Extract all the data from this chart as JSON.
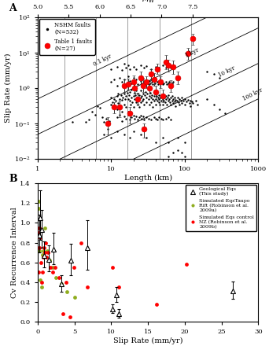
{
  "panel_A": {
    "xlabel": "Length (km)",
    "ylabel": "Slip Rate (mm/yr)",
    "xlim": [
      1,
      1000
    ],
    "ylim": [
      0.01,
      100
    ],
    "mw_ticks": [
      5.0,
      5.5,
      6.0,
      6.5,
      7.0,
      7.5
    ],
    "ri_contours": [
      0.1,
      1.0,
      10.0,
      100.0
    ],
    "ri_labels": [
      "0.1 kyr",
      "1 kyr",
      "10 kyr",
      "100 kyr"
    ],
    "nshm_points": [
      [
        4.5,
        0.11
      ],
      [
        5.0,
        0.13
      ],
      [
        5.5,
        0.22
      ],
      [
        6.0,
        0.18
      ],
      [
        6.5,
        0.32
      ],
      [
        7.0,
        0.28
      ],
      [
        7.5,
        0.15
      ],
      [
        8.0,
        0.11
      ],
      [
        8.5,
        0.14
      ],
      [
        9.0,
        0.09
      ],
      [
        9.5,
        0.12
      ],
      [
        10.0,
        0.35
      ],
      [
        10.0,
        0.55
      ],
      [
        10.5,
        0.4
      ],
      [
        11.0,
        0.5
      ],
      [
        11.0,
        0.3
      ],
      [
        11.5,
        0.45
      ],
      [
        12.0,
        0.6
      ],
      [
        12.0,
        0.25
      ],
      [
        12.5,
        0.7
      ],
      [
        12.5,
        0.38
      ],
      [
        13.0,
        0.5
      ],
      [
        13.0,
        0.28
      ],
      [
        13.5,
        0.65
      ],
      [
        14.0,
        0.48
      ],
      [
        14.0,
        0.22
      ],
      [
        14.5,
        0.55
      ],
      [
        15.0,
        0.7
      ],
      [
        15.0,
        0.35
      ],
      [
        15.5,
        0.5
      ],
      [
        16.0,
        0.6
      ],
      [
        16.0,
        0.3
      ],
      [
        16.5,
        0.75
      ],
      [
        17.0,
        0.5
      ],
      [
        17.0,
        0.22
      ],
      [
        17.5,
        0.65
      ],
      [
        18.0,
        0.45
      ],
      [
        18.0,
        0.8
      ],
      [
        18.5,
        0.35
      ],
      [
        19.0,
        0.55
      ],
      [
        19.0,
        0.9
      ],
      [
        19.5,
        0.4
      ],
      [
        20.0,
        0.6
      ],
      [
        20.0,
        0.3
      ],
      [
        20.5,
        0.75
      ],
      [
        21.0,
        0.5
      ],
      [
        21.5,
        0.65
      ],
      [
        22.0,
        0.4
      ],
      [
        22.0,
        0.85
      ],
      [
        22.5,
        0.55
      ],
      [
        23.0,
        0.7
      ],
      [
        23.0,
        0.35
      ],
      [
        23.5,
        0.5
      ],
      [
        24.0,
        0.65
      ],
      [
        24.0,
        0.3
      ],
      [
        25.0,
        0.55
      ],
      [
        25.0,
        0.85
      ],
      [
        25.5,
        0.4
      ],
      [
        26.0,
        0.6
      ],
      [
        26.5,
        0.45
      ],
      [
        27.0,
        0.7
      ],
      [
        27.5,
        0.5
      ],
      [
        28.0,
        0.35
      ],
      [
        28.5,
        0.65
      ],
      [
        29.0,
        0.8
      ],
      [
        30.0,
        0.55
      ],
      [
        30.0,
        0.4
      ],
      [
        31.0,
        0.7
      ],
      [
        32.0,
        0.5
      ],
      [
        33.0,
        0.6
      ],
      [
        33.0,
        0.35
      ],
      [
        34.0,
        0.75
      ],
      [
        35.0,
        0.55
      ],
      [
        35.0,
        0.4
      ],
      [
        36.0,
        0.65
      ],
      [
        37.0,
        0.5
      ],
      [
        37.0,
        0.3
      ],
      [
        38.0,
        0.6
      ],
      [
        38.5,
        0.45
      ],
      [
        39.0,
        0.7
      ],
      [
        40.0,
        0.5
      ],
      [
        40.0,
        0.35
      ],
      [
        41.0,
        0.6
      ],
      [
        42.0,
        0.45
      ],
      [
        43.0,
        0.55
      ],
      [
        44.0,
        0.4
      ],
      [
        45.0,
        0.65
      ],
      [
        45.0,
        0.5
      ],
      [
        46.0,
        0.35
      ],
      [
        47.0,
        0.55
      ],
      [
        48.0,
        0.45
      ],
      [
        49.0,
        0.6
      ],
      [
        50.0,
        0.5
      ],
      [
        50.0,
        0.35
      ],
      [
        52.0,
        0.45
      ],
      [
        53.0,
        0.55
      ],
      [
        54.0,
        0.4
      ],
      [
        55.0,
        0.6
      ],
      [
        56.0,
        0.5
      ],
      [
        57.0,
        0.35
      ],
      [
        58.0,
        0.55
      ],
      [
        60.0,
        0.45
      ],
      [
        60.0,
        0.65
      ],
      [
        62.0,
        0.5
      ],
      [
        63.0,
        0.4
      ],
      [
        65.0,
        0.55
      ],
      [
        65.0,
        0.35
      ],
      [
        67.0,
        0.45
      ],
      [
        68.0,
        0.6
      ],
      [
        70.0,
        0.5
      ],
      [
        70.0,
        0.38
      ],
      [
        72.0,
        0.55
      ],
      [
        73.0,
        0.42
      ],
      [
        75.0,
        0.48
      ],
      [
        75.0,
        0.32
      ],
      [
        78.0,
        0.45
      ],
      [
        80.0,
        0.55
      ],
      [
        82.0,
        0.4
      ],
      [
        85.0,
        0.5
      ],
      [
        85.0,
        0.35
      ],
      [
        88.0,
        0.45
      ],
      [
        90.0,
        0.55
      ],
      [
        90.0,
        0.38
      ],
      [
        95.0,
        0.45
      ],
      [
        100.0,
        0.5
      ],
      [
        100.0,
        0.35
      ],
      [
        105.0,
        0.42
      ],
      [
        110.0,
        0.48
      ],
      [
        115.0,
        0.38
      ],
      [
        120.0,
        0.45
      ],
      [
        120.0,
        0.32
      ],
      [
        125.0,
        0.42
      ],
      [
        130.0,
        0.38
      ],
      [
        140.0,
        0.45
      ],
      [
        150.0,
        0.35
      ],
      [
        10.0,
        1.5
      ],
      [
        11.0,
        1.8
      ],
      [
        12.0,
        1.2
      ],
      [
        13.0,
        2.0
      ],
      [
        14.0,
        1.5
      ],
      [
        15.0,
        1.8
      ],
      [
        16.0,
        1.3
      ],
      [
        17.0,
        2.2
      ],
      [
        18.0,
        1.6
      ],
      [
        19.0,
        1.4
      ],
      [
        20.0,
        2.0
      ],
      [
        21.0,
        1.5
      ],
      [
        22.0,
        1.8
      ],
      [
        23.0,
        1.3
      ],
      [
        24.0,
        2.1
      ],
      [
        25.0,
        1.6
      ],
      [
        26.0,
        1.4
      ],
      [
        27.0,
        1.9
      ],
      [
        28.0,
        1.5
      ],
      [
        29.0,
        1.3
      ],
      [
        30.0,
        1.7
      ],
      [
        31.0,
        1.5
      ],
      [
        32.0,
        1.3
      ],
      [
        33.0,
        1.6
      ],
      [
        34.0,
        1.4
      ],
      [
        35.0,
        1.8
      ],
      [
        36.0,
        1.5
      ],
      [
        37.0,
        1.3
      ],
      [
        38.0,
        1.6
      ],
      [
        39.0,
        1.4
      ],
      [
        40.0,
        1.7
      ],
      [
        42.0,
        1.5
      ],
      [
        43.0,
        1.3
      ],
      [
        45.0,
        1.6
      ],
      [
        46.0,
        1.4
      ],
      [
        48.0,
        1.5
      ],
      [
        50.0,
        1.3
      ],
      [
        52.0,
        1.4
      ],
      [
        55.0,
        1.5
      ],
      [
        57.0,
        1.3
      ],
      [
        60.0,
        1.4
      ],
      [
        62.0,
        1.5
      ],
      [
        65.0,
        1.3
      ],
      [
        68.0,
        1.4
      ],
      [
        70.0,
        1.5
      ],
      [
        12.0,
        0.15
      ],
      [
        13.0,
        0.18
      ],
      [
        14.0,
        0.12
      ],
      [
        15.0,
        0.16
      ],
      [
        16.0,
        0.14
      ],
      [
        17.0,
        0.18
      ],
      [
        18.0,
        0.13
      ],
      [
        19.0,
        0.15
      ],
      [
        20.0,
        0.17
      ],
      [
        21.0,
        0.14
      ],
      [
        22.0,
        0.16
      ],
      [
        23.0,
        0.13
      ],
      [
        24.0,
        0.15
      ],
      [
        25.0,
        0.17
      ],
      [
        26.0,
        0.14
      ],
      [
        27.0,
        0.16
      ],
      [
        28.0,
        0.13
      ],
      [
        30.0,
        0.15
      ],
      [
        32.0,
        0.14
      ],
      [
        35.0,
        0.13
      ],
      [
        38.0,
        0.15
      ],
      [
        40.0,
        0.14
      ],
      [
        42.0,
        0.13
      ],
      [
        45.0,
        0.15
      ],
      [
        48.0,
        0.14
      ],
      [
        50.0,
        0.13
      ],
      [
        55.0,
        0.14
      ],
      [
        60.0,
        0.15
      ],
      [
        65.0,
        0.13
      ],
      [
        10.0,
        3.5
      ],
      [
        12.0,
        4.0
      ],
      [
        14.0,
        3.2
      ],
      [
        15.0,
        5.0
      ],
      [
        16.0,
        3.8
      ],
      [
        17.0,
        4.5
      ],
      [
        18.0,
        3.5
      ],
      [
        20.0,
        4.0
      ],
      [
        22.0,
        3.5
      ],
      [
        25.0,
        4.5
      ],
      [
        28.0,
        3.8
      ],
      [
        30.0,
        4.2
      ],
      [
        35.0,
        3.5
      ],
      [
        40.0,
        4.0
      ],
      [
        45.0,
        3.8
      ],
      [
        50.0,
        4.5
      ],
      [
        55.0,
        3.8
      ],
      [
        60.0,
        4.2
      ],
      [
        65.0,
        3.8
      ],
      [
        8.0,
        0.05
      ],
      [
        9.0,
        0.07
      ],
      [
        10.0,
        0.04
      ],
      [
        12.0,
        0.06
      ],
      [
        15.0,
        0.05
      ],
      [
        18.0,
        0.04
      ],
      [
        20.0,
        0.06
      ],
      [
        25.0,
        0.05
      ],
      [
        30.0,
        0.04
      ],
      [
        40.0,
        0.03
      ],
      [
        50.0,
        0.04
      ],
      [
        60.0,
        0.03
      ],
      [
        80.0,
        0.04
      ],
      [
        100.0,
        0.03
      ],
      [
        60.0,
        0.012
      ],
      [
        70.0,
        0.015
      ],
      [
        80.0,
        0.018
      ],
      [
        90.0,
        0.015
      ],
      [
        100.0,
        0.012
      ],
      [
        200.0,
        0.5
      ],
      [
        250.0,
        0.35
      ],
      [
        300.0,
        0.25
      ],
      [
        350.0,
        0.2
      ],
      [
        200.0,
        3.0
      ],
      [
        250.0,
        2.5
      ],
      [
        300.0,
        2.0
      ],
      [
        3.0,
        0.11
      ]
    ],
    "table1_points": [
      [
        9.0,
        0.1,
        0.05,
        0.05
      ],
      [
        11.0,
        0.3,
        0.1,
        0.1
      ],
      [
        13.0,
        0.3,
        0.15,
        0.15
      ],
      [
        15.0,
        1.2,
        0.4,
        0.6
      ],
      [
        17.0,
        1.3,
        0.4,
        0.6
      ],
      [
        18.0,
        0.2,
        0.1,
        0.1
      ],
      [
        20.0,
        1.5,
        0.5,
        0.8
      ],
      [
        21.0,
        1.0,
        0.3,
        0.5
      ],
      [
        23.0,
        0.5,
        0.15,
        0.25
      ],
      [
        25.0,
        2.0,
        0.7,
        0.9
      ],
      [
        27.0,
        1.2,
        0.4,
        0.5
      ],
      [
        28.0,
        0.07,
        0.03,
        0.03
      ],
      [
        30.0,
        1.5,
        0.5,
        0.7
      ],
      [
        33.0,
        1.0,
        0.3,
        0.4
      ],
      [
        35.0,
        2.5,
        0.8,
        1.0
      ],
      [
        38.0,
        1.8,
        0.6,
        0.8
      ],
      [
        40.0,
        0.8,
        0.3,
        0.4
      ],
      [
        42.0,
        3.5,
        1.0,
        1.5
      ],
      [
        47.0,
        1.5,
        0.5,
        0.7
      ],
      [
        50.0,
        0.6,
        0.2,
        0.3
      ],
      [
        55.0,
        5.5,
        2.0,
        3.0
      ],
      [
        60.0,
        4.5,
        1.5,
        2.0
      ],
      [
        65.0,
        1.2,
        0.4,
        0.5
      ],
      [
        70.0,
        4.0,
        1.5,
        2.0
      ],
      [
        80.0,
        2.0,
        0.7,
        0.9
      ],
      [
        110.0,
        9.5,
        3.0,
        4.0
      ],
      [
        130.0,
        25.0,
        8.0,
        10.0
      ]
    ],
    "legend_nshm": "NSHM faults\n(N=532)",
    "legend_table1": "Table 1 faults\n(N=27)"
  },
  "panel_B": {
    "xlabel": "Slip Rate (mm/yr)",
    "ylabel": "Cv Recurrence Interval",
    "xlim": [
      0,
      30
    ],
    "ylim": [
      0,
      1.4
    ],
    "geo_eq_x": [
      0.2,
      0.35,
      0.5,
      0.9,
      1.5,
      2.2,
      3.2,
      4.5,
      6.8,
      10.2,
      10.7,
      11.0,
      26.5
    ],
    "geo_eq_y": [
      0.88,
      1.05,
      0.93,
      0.67,
      0.63,
      0.73,
      0.38,
      0.62,
      0.75,
      0.13,
      0.27,
      0.08,
      0.31
    ],
    "geo_eq_ylo": [
      0.18,
      0.22,
      0.18,
      0.12,
      0.12,
      0.15,
      0.08,
      0.15,
      0.22,
      0.04,
      0.07,
      0.04,
      0.08
    ],
    "geo_eq_yhi": [
      0.2,
      0.28,
      0.2,
      0.14,
      0.14,
      0.17,
      0.09,
      0.17,
      0.28,
      0.05,
      0.08,
      0.05,
      0.1
    ],
    "sim_rift_x": [
      0.08,
      0.15,
      0.22,
      0.35,
      0.5,
      0.65,
      0.8,
      1.0,
      1.3,
      1.6,
      2.0,
      2.5,
      3.2,
      4.0,
      5.0
    ],
    "sim_rift_y": [
      1.22,
      1.15,
      0.72,
      0.42,
      0.35,
      0.68,
      0.72,
      0.95,
      0.72,
      0.62,
      0.55,
      0.45,
      0.38,
      0.3,
      0.25
    ],
    "sim_nz_x": [
      0.08,
      0.12,
      0.18,
      0.25,
      0.32,
      0.42,
      0.52,
      0.62,
      0.72,
      0.85,
      0.95,
      1.05,
      1.2,
      1.45,
      1.7,
      2.0,
      2.4,
      2.9,
      3.4,
      3.9,
      4.4,
      4.9,
      5.9,
      6.8,
      10.2,
      11.0,
      16.2,
      20.2
    ],
    "sim_nz_y": [
      0.5,
      0.9,
      0.95,
      0.75,
      0.85,
      0.6,
      0.4,
      0.5,
      0.65,
      0.75,
      0.7,
      0.8,
      0.65,
      0.7,
      0.55,
      0.5,
      0.55,
      0.45,
      0.08,
      0.4,
      0.05,
      0.55,
      0.8,
      0.35,
      0.55,
      0.35,
      0.18,
      0.58
    ],
    "legend_geo": "Geological Eqs\n(This study)",
    "legend_rift": "Simulated EqsTaupo\nRift (Robinson et al.\n2009a)",
    "legend_nz": "Simulated Eqs control\nNZ (Robinson et al.\n2009b)"
  }
}
